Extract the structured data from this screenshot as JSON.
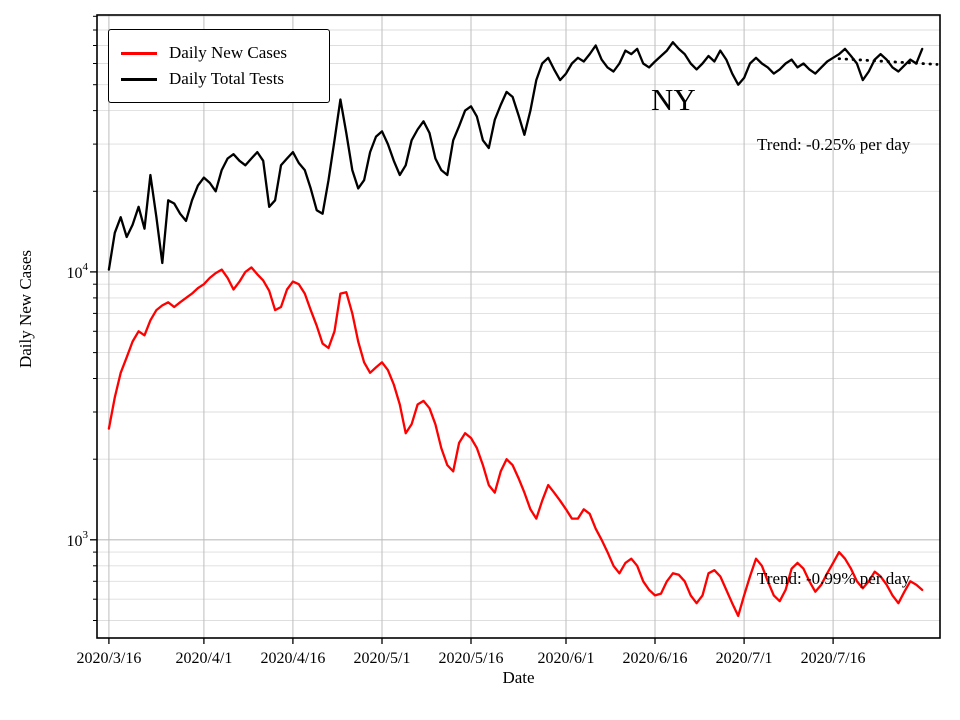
{
  "colors": {
    "background": "#ffffff",
    "grid_major": "#bdbdbd",
    "grid_minor": "#dedede",
    "axis": "#000000",
    "cases_line": "#ff0000",
    "tests_line": "#000000"
  },
  "legend": {
    "items": [
      {
        "label": "Daily New Cases",
        "color": "#ff0000"
      },
      {
        "label": "Daily Total Tests",
        "color": "#000000"
      }
    ]
  },
  "annotations": {
    "state": "NY",
    "tests_trend": "Trend: -0.25% per day",
    "cases_trend": "Trend: -0.99% per day"
  },
  "chart_data": {
    "type": "line",
    "title": "",
    "xlabel": "Date",
    "ylabel": "Daily New Cases",
    "x_axis": {
      "label": "Date",
      "day_range": [
        -2,
        140
      ],
      "tick_days": [
        0,
        16,
        31,
        46,
        61,
        77,
        92,
        107,
        122
      ],
      "tick_labels": [
        "2020/3/16",
        "2020/4/1",
        "2020/4/16",
        "2020/5/1",
        "2020/5/16",
        "2020/6/1",
        "2020/6/16",
        "2020/7/1",
        "2020/7/16"
      ]
    },
    "y_axis": {
      "label": "Daily New Cases",
      "scale": "log",
      "range": [
        430,
        91000
      ],
      "major_ticks": [
        {
          "value": 1000,
          "exponent": "3"
        },
        {
          "value": 10000,
          "exponent": "4"
        }
      ],
      "minor_ticks": [
        500,
        600,
        700,
        800,
        900,
        2000,
        3000,
        4000,
        5000,
        6000,
        7000,
        8000,
        9000,
        20000,
        30000,
        40000,
        50000,
        60000,
        70000,
        80000,
        90000
      ]
    },
    "series": [
      {
        "name": "Daily New Cases",
        "color": "#ff0000",
        "start_day": 0,
        "values": [
          2600,
          3400,
          4200,
          4800,
          5500,
          6000,
          5800,
          6600,
          7200,
          7500,
          7700,
          7400,
          7700,
          8000,
          8300,
          8700,
          9000,
          9500,
          9900,
          10200,
          9500,
          8600,
          9200,
          10000,
          10400,
          9800,
          9300,
          8500,
          7200,
          7400,
          8600,
          9200,
          9000,
          8300,
          7200,
          6300,
          5400,
          5200,
          6000,
          8300,
          8400,
          7000,
          5500,
          4600,
          4200,
          4400,
          4600,
          4300,
          3800,
          3200,
          2500,
          2700,
          3200,
          3300,
          3100,
          2700,
          2200,
          1900,
          1800,
          2300,
          2500,
          2400,
          2200,
          1900,
          1600,
          1500,
          1800,
          2000,
          1900,
          1700,
          1500,
          1300,
          1200,
          1400,
          1600,
          1500,
          1400,
          1300,
          1200,
          1200,
          1300,
          1250,
          1100,
          1000,
          900,
          800,
          750,
          820,
          850,
          800,
          700,
          650,
          620,
          630,
          700,
          750,
          740,
          700,
          620,
          580,
          620,
          750,
          770,
          730,
          650,
          580,
          520,
          620,
          730,
          850,
          800,
          700,
          620,
          590,
          650,
          780,
          820,
          780,
          700,
          640,
          680,
          750,
          820,
          900,
          850,
          780,
          700,
          660,
          700,
          760,
          730,
          680,
          620,
          580,
          640,
          700,
          680,
          650
        ]
      },
      {
        "name": "Daily Total Tests",
        "color": "#000000",
        "start_day": 0,
        "values": [
          10200,
          14000,
          16000,
          13500,
          15000,
          17500,
          14500,
          23000,
          16000,
          10800,
          18500,
          18000,
          16500,
          15500,
          18500,
          21000,
          22500,
          21500,
          20000,
          24000,
          26500,
          27500,
          26000,
          25000,
          26500,
          28000,
          26000,
          17500,
          18500,
          25000,
          26500,
          28000,
          25500,
          24000,
          20500,
          17000,
          16500,
          22000,
          31000,
          44000,
          33000,
          24000,
          20500,
          22000,
          28000,
          32000,
          33500,
          30000,
          26000,
          23000,
          25000,
          31000,
          34000,
          36500,
          33000,
          26500,
          24000,
          23000,
          31000,
          35000,
          40000,
          41500,
          38000,
          31000,
          29000,
          37000,
          42000,
          47000,
          45000,
          38500,
          32500,
          40000,
          52000,
          60000,
          63000,
          57000,
          52000,
          55000,
          60000,
          63000,
          61000,
          65000,
          70000,
          62000,
          58000,
          56000,
          60000,
          67000,
          65000,
          68000,
          60000,
          58000,
          61000,
          64000,
          67000,
          72000,
          68000,
          65000,
          60000,
          57000,
          60000,
          64000,
          61000,
          67000,
          62000,
          55000,
          50000,
          53000,
          60000,
          63000,
          60000,
          58000,
          55000,
          57000,
          60000,
          62000,
          58000,
          60000,
          57000,
          55000,
          58000,
          61000,
          63000,
          65000,
          68000,
          64000,
          60000,
          52000,
          56000,
          62000,
          65000,
          62000,
          58000,
          56000,
          59000,
          62000,
          60000,
          68000
        ]
      }
    ],
    "trend_line": {
      "color": "#000000",
      "style": "dotted",
      "start_day": 123,
      "end_day": 139.5,
      "start_value": 62500,
      "end_value": 59500
    },
    "legend_position": "upper left",
    "grid": true
  }
}
